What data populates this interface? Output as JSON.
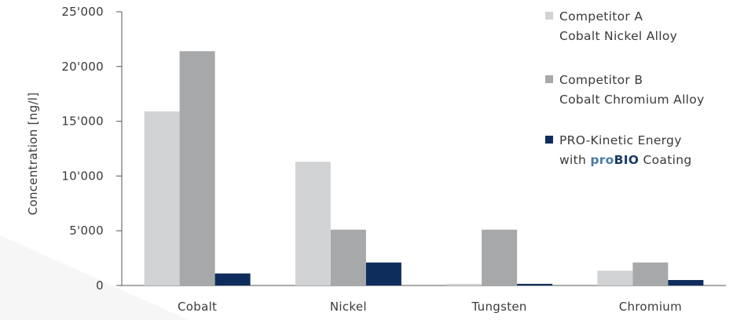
{
  "chart_data": {
    "type": "bar",
    "title": "",
    "xlabel": "",
    "ylabel": "Concentration [ng/l]",
    "categories": [
      "Cobalt",
      "Nickel",
      "Tungsten",
      "Chromium"
    ],
    "ylim": [
      0,
      25000
    ],
    "yticks": [
      0,
      5000,
      10000,
      15000,
      20000,
      25000
    ],
    "ytick_labels": [
      "0",
      "5'000",
      "10'000",
      "15'000",
      "20'000",
      "25'000"
    ],
    "grid": false,
    "legend_position": "top-right",
    "series": [
      {
        "name": "Competitor A Cobalt Nickel Alloy",
        "legend_lines": [
          "Competitor A",
          "Cobalt Nickel Alloy"
        ],
        "color": "#d2d3d5",
        "values": [
          15900,
          11300,
          150,
          1350
        ]
      },
      {
        "name": "Competitor B Cobalt Chromium Alloy",
        "legend_lines": [
          "Competitor B",
          "Cobalt Chromium Alloy"
        ],
        "color": "#a7a8aa",
        "values": [
          21400,
          5100,
          5100,
          2100
        ]
      },
      {
        "name": "PRO-Kinetic Energy with proBIO Coating",
        "legend_lines": [
          "PRO-Kinetic Energy",
          "with proBIO Coating"
        ],
        "legend_line2_prefix": "with ",
        "legend_brand_pro": "pro",
        "legend_brand_bio": "BIO",
        "legend_line2_suffix": " Coating",
        "color": "#0f2d5c",
        "values": [
          1100,
          2100,
          150,
          500
        ]
      }
    ]
  }
}
